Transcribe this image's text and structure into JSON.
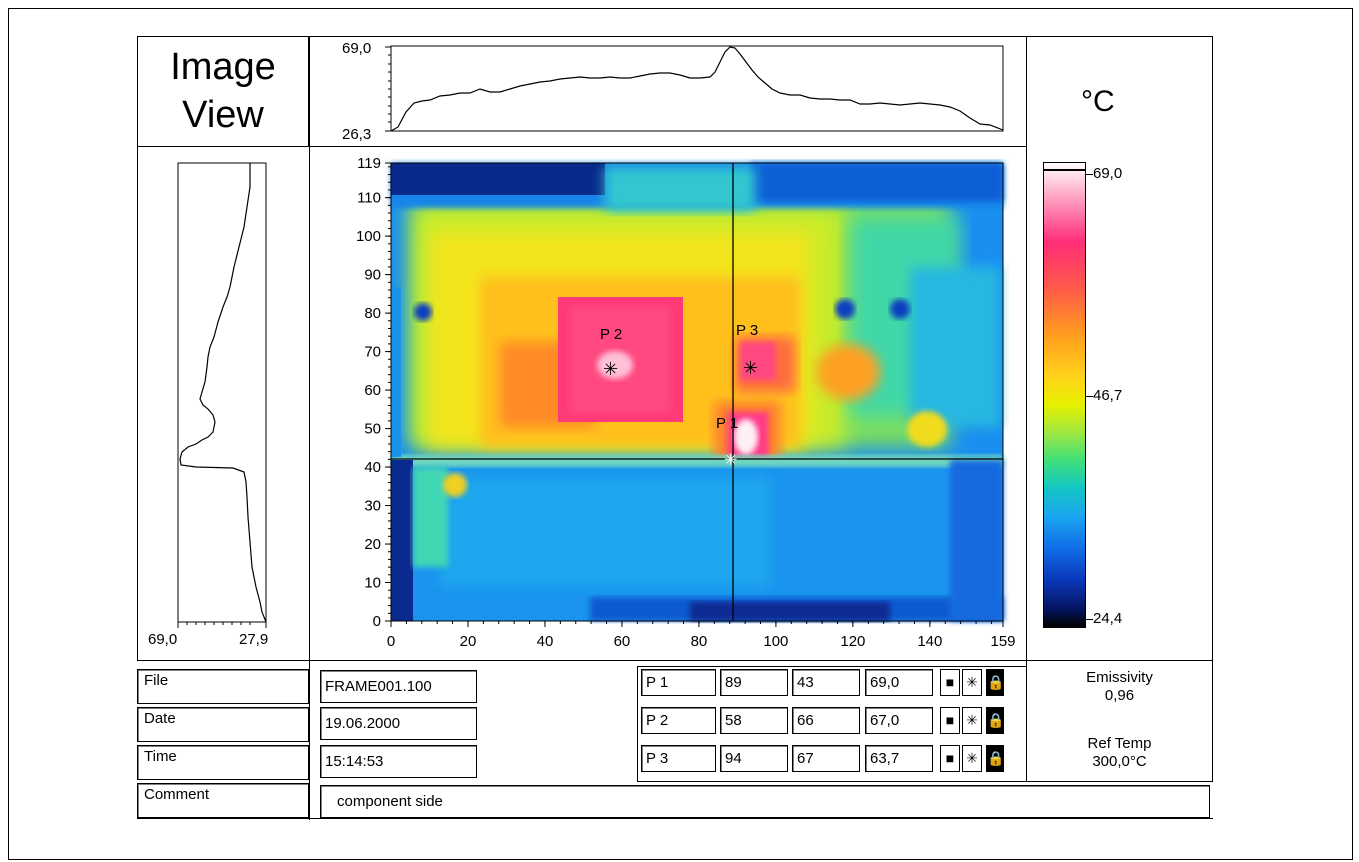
{
  "view_title": [
    "Image",
    "View"
  ],
  "unit": "°C",
  "colorbar": {
    "max": "69,0",
    "mid": "46,7",
    "min": "24,4"
  },
  "top_profile": {
    "max": "69,0",
    "min": "26,3"
  },
  "left_profile": {
    "left_label": "69,0",
    "right_label": "27,9"
  },
  "axes": {
    "y_ticks": [
      "119",
      "110",
      "100",
      "90",
      "80",
      "70",
      "60",
      "50",
      "40",
      "30",
      "20",
      "10",
      "0"
    ],
    "x_ticks": [
      "0",
      "20",
      "40",
      "60",
      "80",
      "100",
      "120",
      "140",
      "159"
    ]
  },
  "points_on_image": [
    "P 1",
    "P 2",
    "P 3"
  ],
  "info": {
    "file_label": "File",
    "file_value": "FRAME001.100",
    "date_label": "Date",
    "date_value": "19.06.2000",
    "time_label": "Time",
    "time_value": "15:14:53",
    "comment_label": "Comment",
    "comment_value": "component side"
  },
  "points": [
    {
      "name": "P 1",
      "x": "89",
      "y": "43",
      "temp": "69,0"
    },
    {
      "name": "P 2",
      "x": "58",
      "y": "66",
      "temp": "67,0"
    },
    {
      "name": "P 3",
      "x": "94",
      "y": "67",
      "temp": "63,7"
    }
  ],
  "params": {
    "emissivity_label": "Emissivity",
    "emissivity_value": "0,96",
    "ref_temp_label": "Ref Temp",
    "ref_temp_value": "300,0°C"
  }
}
